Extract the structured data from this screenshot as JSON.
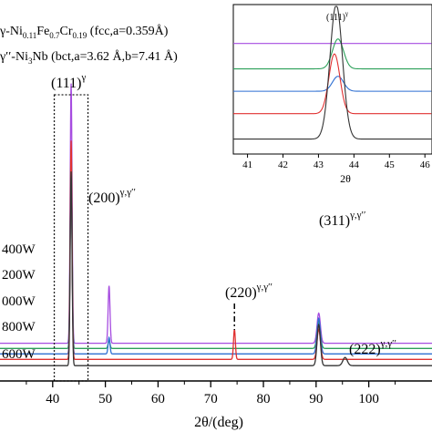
{
  "chart_data": {
    "type": "line",
    "xlabel": "2θ/(deg)",
    "xlim": [
      30,
      112
    ],
    "x_ticks": [
      "40",
      "50",
      "60",
      "70",
      "80",
      "90",
      "100"
    ],
    "legend": {
      "placement": "top-left",
      "entries": [
        {
          "text": "γ-Ni0.11Fe0.7Cr0.19 (fcc,a=0.359Å)",
          "main": "γ-Ni",
          "parts": [
            [
              "0.11",
              "Fe"
            ],
            [
              "0.7",
              "Cr"
            ],
            [
              "0.19",
              " (fcc,a=0.359Å)"
            ]
          ]
        },
        {
          "text": "γ′′-Ni3Nb (bct,a=3.62 Å,b=7.41 Å)",
          "main": "γ′′-Ni",
          "parts": [
            [
              "3",
              "Nb (bct,a=3.62 Å,b=7.41 Å)"
            ]
          ]
        }
      ]
    },
    "series": [
      {
        "name": "400W",
        "color": "#a64ce0",
        "baseline": 0.88,
        "peaks": [
          [
            43.5,
            9.5,
            0.25
          ],
          [
            50.7,
            2.1,
            0.25
          ],
          [
            90.5,
            1.1,
            0.45
          ]
        ]
      },
      {
        "name": "200W",
        "color": "#2ca05a",
        "baseline": 0.69,
        "peaks": [
          [
            43.5,
            7.3,
            0.25
          ],
          [
            50.7,
            0.3,
            0.25
          ],
          [
            90.5,
            1.0,
            0.45
          ]
        ]
      },
      {
        "name": "000W",
        "color": "#2e6fd2",
        "baseline": 0.49,
        "peaks": [
          [
            43.5,
            7.5,
            0.25
          ],
          [
            50.7,
            0.6,
            0.25
          ],
          [
            90.5,
            1.3,
            0.45
          ]
        ]
      },
      {
        "name": "800W",
        "color": "#e03030",
        "baseline": 0.29,
        "peaks": [
          [
            43.5,
            8.0,
            0.25
          ],
          [
            74.5,
            1.1,
            0.25
          ],
          [
            90.5,
            1.1,
            0.45
          ]
        ]
      },
      {
        "name": "600W",
        "color": "#333333",
        "baseline": 0.06,
        "peaks": [
          [
            43.5,
            7.1,
            0.25
          ],
          [
            90.5,
            1.5,
            0.45
          ],
          [
            95.5,
            0.3,
            0.6
          ]
        ]
      }
    ],
    "annotations": [
      {
        "name": "peak-111",
        "main": "(111)",
        "sup": "γ"
      },
      {
        "name": "peak-200",
        "main": "(200)",
        "sup": "γ,γ′′"
      },
      {
        "name": "peak-311",
        "main": "(311)",
        "sup": "γ,γ′′"
      },
      {
        "name": "peak-220",
        "main": "(220)",
        "sup": "γ,γ′′"
      },
      {
        "name": "peak-222",
        "main": "(222)",
        "sup": "γ,γ′′"
      }
    ],
    "inset": {
      "xlim": [
        40.6,
        46.2
      ],
      "x_ticks": [
        "41",
        "42",
        "43",
        "44",
        "45",
        "46"
      ],
      "xlabel": "2θ",
      "annotation": {
        "main": "(111)",
        "sup": "γ"
      },
      "series": [
        {
          "name": "400W",
          "color": "#a64ce0",
          "baseline": 0.74,
          "peak": [
            43.5,
            0.0,
            0.22
          ]
        },
        {
          "name": "200W",
          "color": "#2ca05a",
          "baseline": 0.57,
          "peak": [
            43.55,
            0.2,
            0.22
          ]
        },
        {
          "name": "000W",
          "color": "#2e6fd2",
          "baseline": 0.42,
          "peak": [
            43.55,
            0.1,
            0.22
          ]
        },
        {
          "name": "800W",
          "color": "#e03030",
          "baseline": 0.27,
          "peak": [
            43.45,
            0.4,
            0.22
          ]
        },
        {
          "name": "600W",
          "color": "#333333",
          "baseline": 0.1,
          "peak": [
            43.5,
            0.9,
            0.25
          ]
        }
      ]
    }
  }
}
